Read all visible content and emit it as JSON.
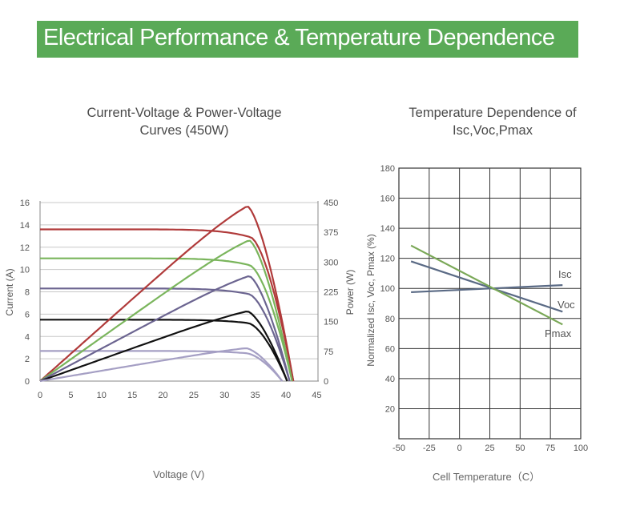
{
  "banner": {
    "title": "Electrical Performance & Temperature Dependence"
  },
  "chart_data": [
    {
      "type": "line",
      "title": "Current-Voltage & Power-Voltage Curves (450W)",
      "title_lines": [
        "Current-Voltage & Power-Voltage",
        "Curves (450W)"
      ],
      "xlabel": "Voltage (V)",
      "ylabel": "Current (A)",
      "y2label": "Power (W)",
      "xlim": [
        0,
        45
      ],
      "ylim": [
        0,
        16
      ],
      "y2lim": [
        0,
        450
      ],
      "x_ticks": [
        0,
        5,
        10,
        15,
        20,
        25,
        30,
        35,
        40,
        45
      ],
      "y_ticks": [
        0,
        2,
        4,
        6,
        8,
        10,
        12,
        14,
        16
      ],
      "y2_ticks": [
        0,
        75,
        150,
        225,
        300,
        375,
        450
      ],
      "grid": true,
      "series": [
        {
          "kind": "current",
          "color": "#b03a3a",
          "isc": 13.6,
          "imp": 12.9,
          "vmp": 34.2,
          "voc": 41.2
        },
        {
          "kind": "current",
          "color": "#7ab55c",
          "isc": 11.0,
          "imp": 10.4,
          "vmp": 34.0,
          "voc": 41.0
        },
        {
          "kind": "current",
          "color": "#6b6490",
          "isc": 8.3,
          "imp": 7.8,
          "vmp": 33.9,
          "voc": 40.6
        },
        {
          "kind": "current",
          "color": "#111111",
          "isc": 5.5,
          "imp": 5.2,
          "vmp": 33.8,
          "voc": 40.2
        },
        {
          "kind": "current",
          "color": "#a59fc4",
          "isc": 2.7,
          "imp": 2.5,
          "vmp": 33.5,
          "voc": 39.4
        },
        {
          "kind": "power",
          "color": "#b03a3a",
          "pmax": 441,
          "vmp": 33.7,
          "voc": 41.2
        },
        {
          "kind": "power",
          "color": "#7ab55c",
          "pmax": 355,
          "vmp": 34.0,
          "voc": 41.0
        },
        {
          "kind": "power",
          "color": "#6b6490",
          "pmax": 265,
          "vmp": 34.0,
          "voc": 40.6
        },
        {
          "kind": "power",
          "color": "#111111",
          "pmax": 176,
          "vmp": 33.7,
          "voc": 40.2
        },
        {
          "kind": "power",
          "color": "#a59fc4",
          "pmax": 83,
          "vmp": 33.5,
          "voc": 39.4
        }
      ]
    },
    {
      "type": "line",
      "title": "Temperature Dependence of Isc,Voc,Pmax",
      "title_lines": [
        "Temperature Dependence of",
        "Isc,Voc,Pmax"
      ],
      "xlabel": "Cell Temperature（C）",
      "ylabel": "Normalized Isc, Voc, Pmax (%)",
      "xlim": [
        -50,
        100
      ],
      "ylim": [
        0,
        180
      ],
      "x_ticks": [
        -50,
        -25,
        0,
        25,
        50,
        75,
        100
      ],
      "y_ticks": [
        20,
        40,
        60,
        80,
        100,
        120,
        140,
        160,
        180
      ],
      "grid": true,
      "series": [
        {
          "name": "Isc",
          "color": "#5a6a85",
          "x": [
            -40,
            85
          ],
          "y": [
            97.5,
            102.2
          ]
        },
        {
          "name": "Voc",
          "color": "#5a6a85",
          "x": [
            -40,
            85
          ],
          "y": [
            118,
            84.5
          ]
        },
        {
          "name": "Pmax",
          "color": "#7aa857",
          "x": [
            -40,
            85
          ],
          "y": [
            128.5,
            76
          ]
        }
      ]
    }
  ]
}
